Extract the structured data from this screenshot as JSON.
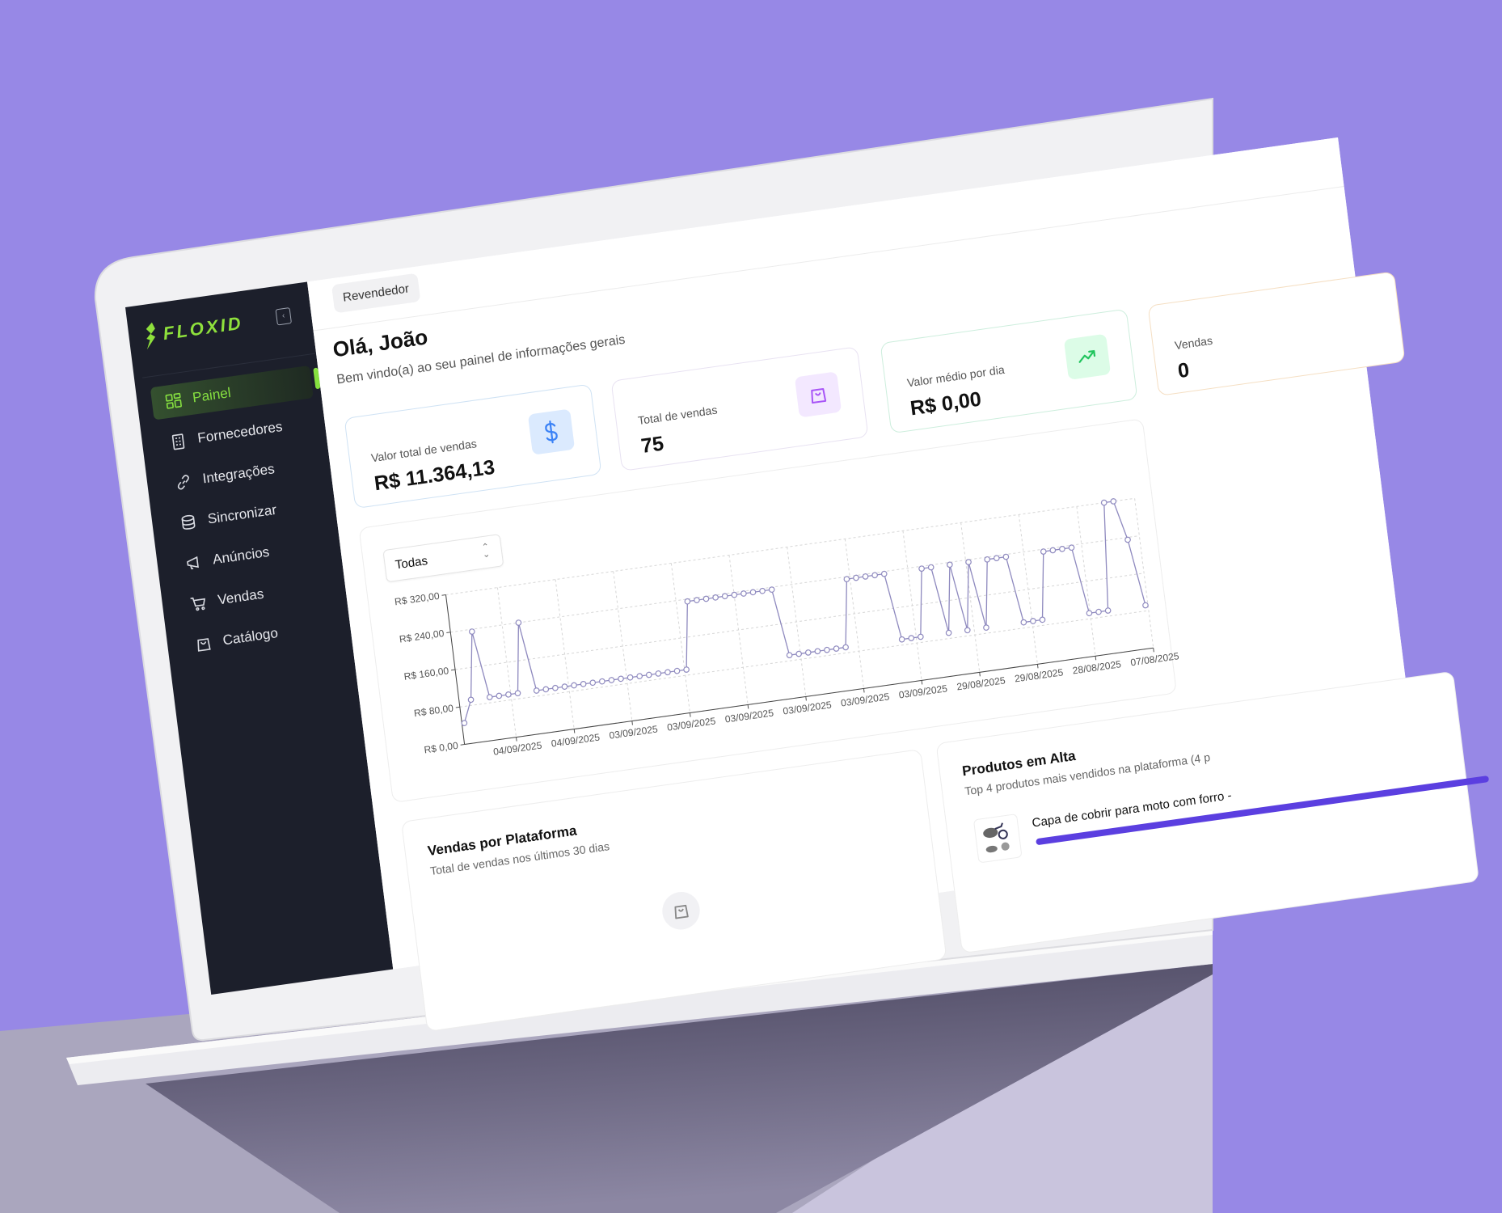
{
  "sidebar": {
    "logo": "FLOXID",
    "items": [
      {
        "label": "Painel",
        "icon": "grid-icon",
        "active": true
      },
      {
        "label": "Fornecedores",
        "icon": "building-icon"
      },
      {
        "label": "Integrações",
        "icon": "link-icon"
      },
      {
        "label": "Sincronizar",
        "icon": "database-icon"
      },
      {
        "label": "Anúncios",
        "icon": "megaphone-icon"
      },
      {
        "label": "Vendas",
        "icon": "cart-icon"
      },
      {
        "label": "Catálogo",
        "icon": "shopping-bag-icon"
      }
    ],
    "accent": "#86e040"
  },
  "header": {
    "role_chip": "Revendedor"
  },
  "greeting": {
    "title": "Olá, João",
    "subtitle": "Bem vindo(a) ao seu painel de informações gerais"
  },
  "stats": [
    {
      "label": "Valor total de vendas",
      "value": "R$ 11.364,13",
      "icon": "dollar-icon",
      "color": "#3b82f6"
    },
    {
      "label": "Total de vendas",
      "value": "75",
      "icon": "shopping-bag-icon",
      "color": "#a855f7"
    },
    {
      "label": "Valor médio por dia",
      "value": "R$ 0,00",
      "icon": "trending-up-icon",
      "color": "#22c55e"
    },
    {
      "label": "Vendas",
      "value": "0",
      "icon": "",
      "color": "#f5c48a"
    }
  ],
  "chart": {
    "filter": "Todas"
  },
  "chart_data": {
    "type": "line",
    "ylim": [
      0,
      320
    ],
    "yticks": [
      "R$ 0,00",
      "R$ 80,00",
      "R$ 160,00",
      "R$ 240,00",
      "R$ 320,00"
    ],
    "ytick_values": [
      0,
      80,
      160,
      240,
      320
    ],
    "xticks": [
      "04/09/2025",
      "04/09/2025",
      "03/09/2025",
      "03/09/2025",
      "03/09/2025",
      "03/09/2025",
      "03/09/2025",
      "03/09/2025",
      "29/08/2025",
      "29/08/2025",
      "28/08/2025",
      "07/08/2025"
    ],
    "grid": true,
    "color": "#8f8abf",
    "values": [
      45,
      92,
      235,
      92,
      92,
      92,
      92,
      240,
      92,
      92,
      92,
      92,
      92,
      92,
      92,
      92,
      92,
      92,
      92,
      92,
      92,
      92,
      92,
      92,
      92,
      235,
      235,
      235,
      235,
      235,
      235,
      235,
      235,
      235,
      235,
      92,
      92,
      92,
      92,
      92,
      92,
      92,
      235,
      235,
      235,
      235,
      235,
      92,
      92,
      92,
      235,
      235,
      92,
      235,
      92,
      235,
      92,
      235,
      235,
      235,
      92,
      92,
      92,
      235,
      235,
      235,
      235,
      92,
      92,
      92,
      320,
      320,
      235,
      92
    ]
  },
  "platform_card": {
    "title": "Vendas por Plataforma",
    "subtitle": "Total de vendas nos últimos 30 dias",
    "empty_icon": "shopping-bag-icon"
  },
  "top_products": {
    "title": "Produtos em Alta",
    "subtitle": "Top 4 produtos mais vendidos na plataforma (4 p",
    "items": [
      {
        "name": "Capa de cobrir para moto com forro -",
        "progress": 1.0,
        "color": "#5b3fe0"
      }
    ]
  }
}
